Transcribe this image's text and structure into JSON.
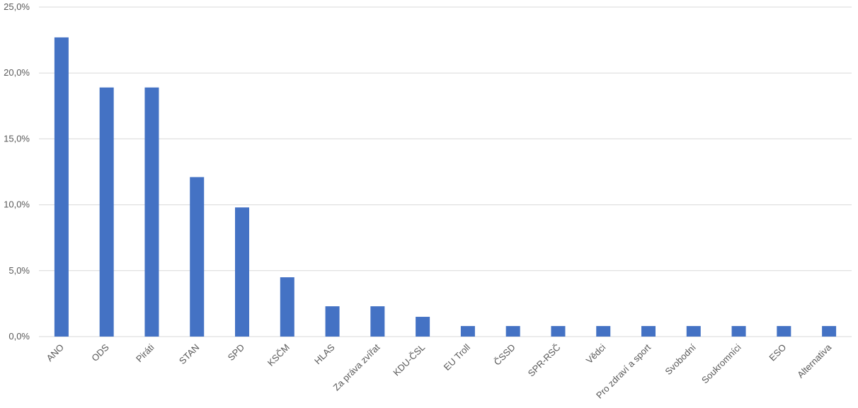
{
  "chart_data": {
    "type": "bar",
    "categories": [
      "ANO",
      "ODS",
      "Piráti",
      "STAN",
      "SPD",
      "KSČM",
      "HLAS",
      "Za práva zvířat",
      "KDU-ČSL",
      "EU Troll",
      "ČSSD",
      "SPR-RSČ",
      "Vědci",
      "Pro zdraví a sport",
      "Svobodní",
      "Soukromníci",
      "ESO",
      "Alternativa"
    ],
    "values": [
      22.7,
      18.9,
      18.9,
      12.1,
      9.8,
      4.5,
      2.3,
      2.3,
      1.5,
      0.8,
      0.8,
      0.8,
      0.8,
      0.8,
      0.8,
      0.8,
      0.8,
      0.8
    ],
    "ylim": [
      0,
      25
    ],
    "yticks": [
      0,
      5,
      10,
      15,
      20,
      25
    ],
    "ytick_labels": [
      "0,0%",
      "5,0%",
      "10,0%",
      "15,0%",
      "20,0%",
      "25,0%"
    ],
    "title": "",
    "xlabel": "",
    "ylabel": "",
    "grid": true,
    "bar_color": "#4472C4",
    "grid_color": "#D9D9D9",
    "text_color": "#595959"
  }
}
